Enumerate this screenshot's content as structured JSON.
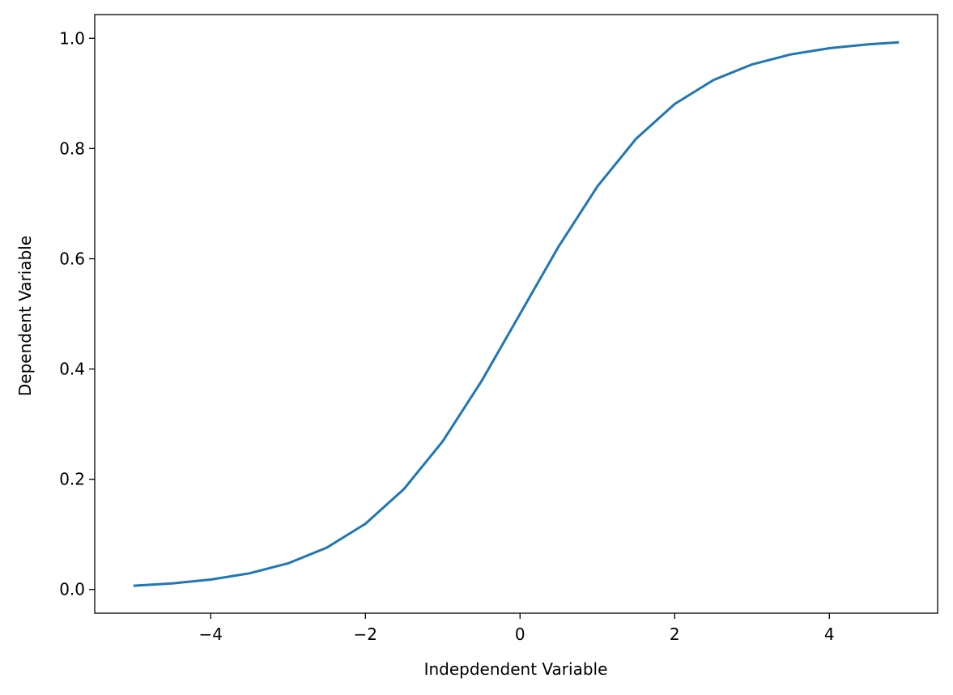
{
  "chart_data": {
    "type": "line",
    "title": "",
    "xlabel": "Indepdendent Variable",
    "ylabel": "Dependent Variable",
    "xlim": [
      -5.5,
      5.4
    ],
    "ylim": [
      -0.043,
      1.043
    ],
    "grid": false,
    "legend": "none",
    "xticks": [
      -4,
      -2,
      0,
      2,
      4
    ],
    "xtick_labels": [
      "−4",
      "−2",
      "0",
      "2",
      "4"
    ],
    "yticks": [
      0.0,
      0.2,
      0.4,
      0.6,
      0.8,
      1.0
    ],
    "ytick_labels": [
      "0.0",
      "0.2",
      "0.4",
      "0.6",
      "0.8",
      "1.0"
    ],
    "series": [
      {
        "color": "#1f77b4",
        "x": [
          -5.0,
          -4.5,
          -4.0,
          -3.5,
          -3.0,
          -2.5,
          -2.0,
          -1.5,
          -1.0,
          -0.5,
          0.0,
          0.5,
          1.0,
          1.5,
          2.0,
          2.5,
          3.0,
          3.5,
          4.0,
          4.5,
          4.9
        ],
        "y": [
          0.0067,
          0.011,
          0.018,
          0.0293,
          0.0474,
          0.0759,
          0.1192,
          0.1824,
          0.2689,
          0.3775,
          0.5,
          0.6225,
          0.7311,
          0.8176,
          0.8808,
          0.9241,
          0.9526,
          0.9707,
          0.982,
          0.989,
          0.9926
        ]
      }
    ]
  }
}
